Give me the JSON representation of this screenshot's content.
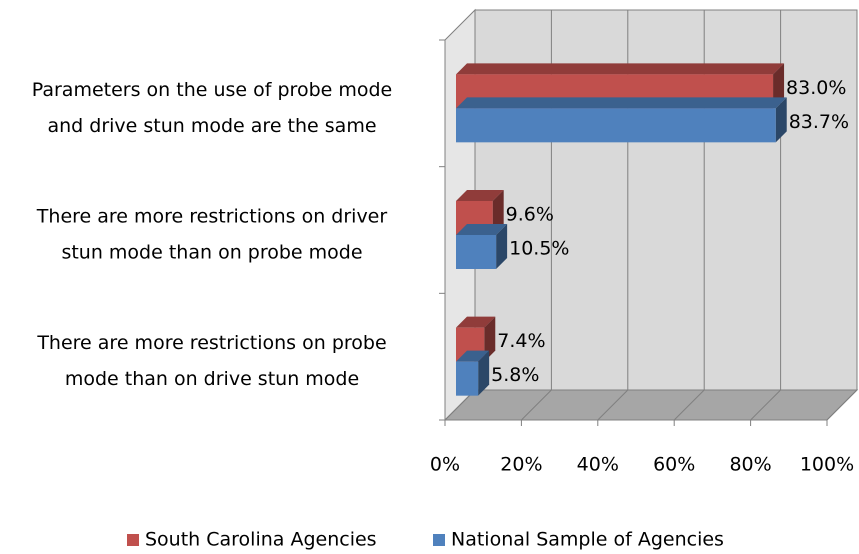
{
  "chart_data": {
    "type": "bar3d",
    "categories": [
      [
        "Parameters on the use of probe mode",
        "and drive stun mode are the same"
      ],
      [
        "There are more restrictions on driver",
        "stun mode than on probe mode"
      ],
      [
        "There are more restrictions on probe",
        "mode than on drive stun mode"
      ]
    ],
    "series": [
      {
        "name": "South Carolina Agencies",
        "color": "#c0504d",
        "values": [
          83.0,
          9.6,
          7.4
        ],
        "value_labels": [
          "83.0%",
          "9.6%",
          "7.4%"
        ]
      },
      {
        "name": "National Sample of Agencies",
        "color": "#4f81bd",
        "values": [
          83.7,
          10.5,
          5.8
        ],
        "value_labels": [
          "83.7%",
          "10.5%",
          "5.8%"
        ]
      }
    ],
    "xlim": [
      0,
      100
    ],
    "xticks": [
      {
        "value": 0,
        "label": "0%"
      },
      {
        "value": 20,
        "label": "20%"
      },
      {
        "value": 40,
        "label": "40%"
      },
      {
        "value": 60,
        "label": "60%"
      },
      {
        "value": 80,
        "label": "80%"
      },
      {
        "value": 100,
        "label": "100%"
      }
    ],
    "grid": true,
    "legend": "bottom"
  }
}
